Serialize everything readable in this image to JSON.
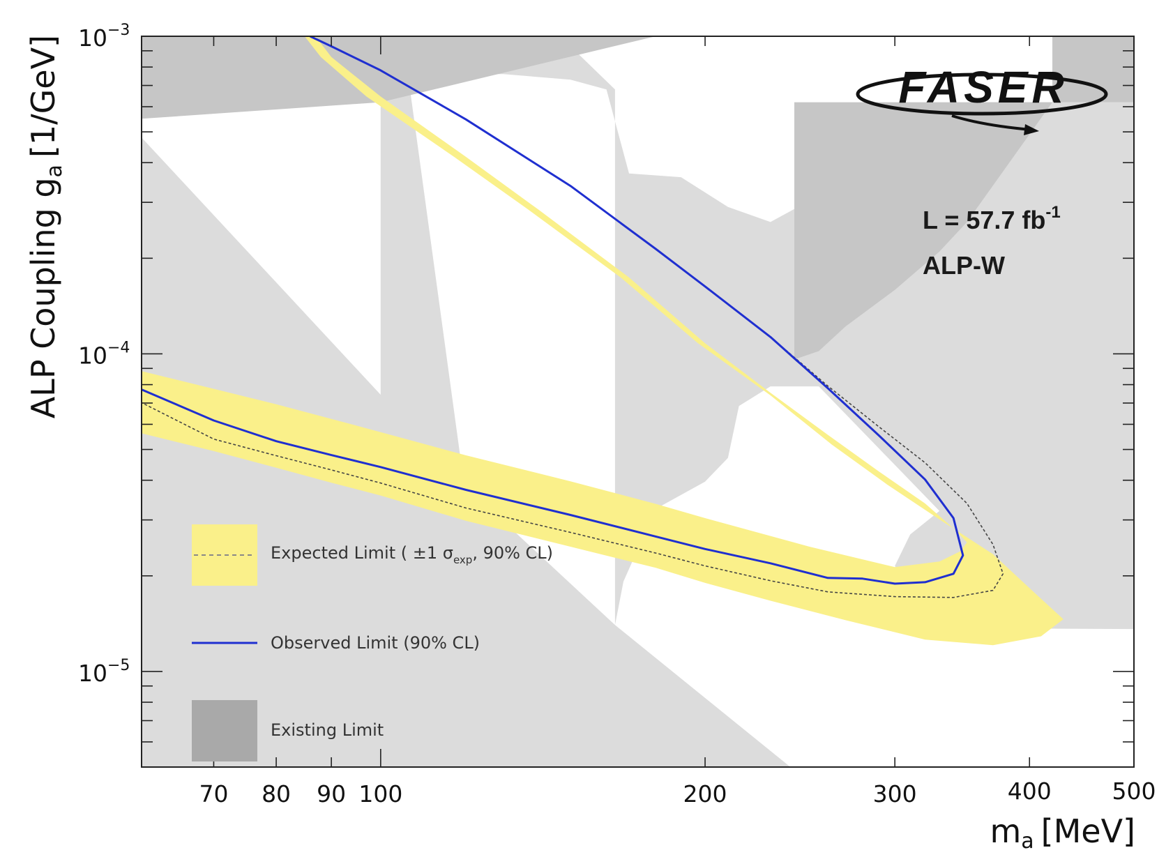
{
  "chart_data": {
    "type": "line",
    "xlabel": "m",
    "xlabel_sub": "a",
    "xlabel_unit": "[MeV]",
    "ylabel": "ALP Coupling g",
    "ylabel_sub": "a",
    "ylabel_unit": "[1/GeV]",
    "x_scale": "log",
    "y_scale": "log",
    "xlim": [
      60,
      500
    ],
    "ylim": [
      5e-06,
      0.001
    ],
    "x_ticks": [
      {
        "value": 70,
        "label": "70"
      },
      {
        "value": 80,
        "label": "80"
      },
      {
        "value": 90,
        "label": "90"
      },
      {
        "value": 100,
        "label": "100"
      },
      {
        "value": 200,
        "label": "200"
      },
      {
        "value": 300,
        "label": "300"
      },
      {
        "value": 400,
        "label": "400"
      },
      {
        "value": 500,
        "label": "500"
      }
    ],
    "y_ticks": [
      {
        "value": 1e-05,
        "base": "10",
        "exp": "−5"
      },
      {
        "value": 0.0001,
        "base": "10",
        "exp": "−4"
      },
      {
        "value": 0.001,
        "base": "10",
        "exp": "−3"
      }
    ],
    "annotations": {
      "luminosity": "L = 57.7 fb",
      "luminosity_exp": "-1",
      "model": "ALP-W",
      "logo": "FASER"
    },
    "legend": {
      "placement": "bottom-left",
      "entries": [
        {
          "prefix": "Expected Limit ( ±1 σ",
          "sub": "exp",
          "suffix": ", 90% CL)",
          "style": "band-dashed"
        },
        {
          "label": "Observed Limit (90% CL)",
          "style": "line"
        },
        {
          "label": "Existing Limit",
          "style": "patch"
        }
      ]
    },
    "colors": {
      "band": "#faf08a",
      "observed": "#1f2fd0",
      "expected": "#444444",
      "existing_light": "#dcdcdc",
      "existing_dark": "#c6c6c6",
      "existing_legend": "#a9a9a9"
    },
    "series": [
      {
        "role": "expected_band",
        "points": [
          [
            60,
            8.82e-05
          ],
          [
            70,
            7.76e-05
          ],
          [
            80,
            6.94e-05
          ],
          [
            90,
            6.24e-05
          ],
          [
            100,
            5.67e-05
          ],
          [
            120,
            4.79e-05
          ],
          [
            150,
            3.97e-05
          ],
          [
            180,
            3.37e-05
          ],
          [
            200,
            3.04e-05
          ],
          [
            250,
            2.47e-05
          ],
          [
            300,
            2.13e-05
          ],
          [
            330,
            2.22e-05
          ],
          [
            345,
            2.39e-05
          ],
          [
            350,
            2.55e-05
          ],
          [
            340,
            2.82e-05
          ],
          [
            320,
            3.38e-05
          ],
          [
            290,
            4.26e-05
          ],
          [
            260,
            5.56e-05
          ],
          [
            230,
            7.54e-05
          ],
          [
            200,
            0.000108
          ],
          [
            170,
            0.000174
          ],
          [
            140,
            0.000285
          ],
          [
            120,
            0.000417
          ],
          [
            100,
            0.000646
          ],
          [
            90,
            0.00086
          ],
          [
            87,
            0.001
          ],
          [
            85,
            0.001
          ],
          [
            88,
            0.00086
          ],
          [
            97,
            0.000646
          ],
          [
            117,
            0.000417
          ],
          [
            137,
            0.000285
          ],
          [
            167,
            0.000174
          ],
          [
            197,
            0.000108
          ],
          [
            230,
            7.4e-05
          ],
          [
            262,
            5.19e-05
          ],
          [
            295,
            3.88e-05
          ],
          [
            330,
            3.01e-05
          ],
          [
            370,
            2.34e-05
          ],
          [
            405,
            1.76e-05
          ],
          [
            430,
            1.46e-05
          ],
          [
            410,
            1.29e-05
          ],
          [
            370,
            1.21e-05
          ],
          [
            320,
            1.26e-05
          ],
          [
            270,
            1.45e-05
          ],
          [
            230,
            1.67e-05
          ],
          [
            200,
            1.9e-05
          ],
          [
            180,
            2.12e-05
          ],
          [
            150,
            2.47e-05
          ],
          [
            120,
            2.98e-05
          ],
          [
            100,
            3.58e-05
          ],
          [
            90,
            3.93e-05
          ],
          [
            80,
            4.38e-05
          ],
          [
            70,
            4.94e-05
          ],
          [
            60,
            5.62e-05
          ]
        ]
      },
      {
        "role": "expected",
        "name": "Expected Limit",
        "points": [
          [
            86,
            0.001
          ],
          [
            90,
            0.00093
          ],
          [
            100,
            0.000781
          ],
          [
            120,
            0.000547
          ],
          [
            150,
            0.000338
          ],
          [
            180,
            0.000214
          ],
          [
            200,
            0.000163
          ],
          [
            230,
            0.000113
          ],
          [
            260,
            7.92e-05
          ],
          [
            290,
            5.89e-05
          ],
          [
            320,
            4.54e-05
          ],
          [
            350,
            3.38e-05
          ],
          [
            370,
            2.51e-05
          ],
          [
            378,
            2.03e-05
          ],
          [
            370,
            1.8e-05
          ],
          [
            340,
            1.71e-05
          ],
          [
            300,
            1.72e-05
          ],
          [
            260,
            1.78e-05
          ],
          [
            230,
            1.93e-05
          ],
          [
            200,
            2.15e-05
          ],
          [
            180,
            2.36e-05
          ],
          [
            150,
            2.74e-05
          ],
          [
            120,
            3.27e-05
          ],
          [
            100,
            3.92e-05
          ],
          [
            90,
            4.31e-05
          ],
          [
            80,
            4.78e-05
          ],
          [
            70,
            5.39e-05
          ],
          [
            60,
            7.02e-05
          ]
        ]
      },
      {
        "role": "observed",
        "name": "Observed Limit",
        "points": [
          [
            86,
            0.001
          ],
          [
            90,
            0.00093
          ],
          [
            100,
            0.000781
          ],
          [
            120,
            0.000547
          ],
          [
            150,
            0.000338
          ],
          [
            180,
            0.000214
          ],
          [
            200,
            0.000163
          ],
          [
            230,
            0.000113
          ],
          [
            260,
            7.79e-05
          ],
          [
            290,
            5.53e-05
          ],
          [
            320,
            4.02e-05
          ],
          [
            340,
            3.04e-05
          ],
          [
            347,
            2.32e-05
          ],
          [
            340,
            2.03e-05
          ],
          [
            320,
            1.91e-05
          ],
          [
            300,
            1.89e-05
          ],
          [
            280,
            1.96e-05
          ],
          [
            260,
            1.97e-05
          ],
          [
            230,
            2.19e-05
          ],
          [
            200,
            2.43e-05
          ],
          [
            180,
            2.66e-05
          ],
          [
            150,
            3.11e-05
          ],
          [
            120,
            3.73e-05
          ],
          [
            100,
            4.4e-05
          ],
          [
            90,
            4.8e-05
          ],
          [
            80,
            5.31e-05
          ],
          [
            70,
            6.17e-05
          ],
          [
            60,
            7.72e-05
          ]
        ]
      }
    ],
    "existing_regions": [
      {
        "shade": "light",
        "points": [
          [
            60,
            5e-06
          ],
          [
            60,
            0.00048
          ],
          [
            120,
            3.82e-05
          ],
          [
            165,
            1.4e-05
          ],
          [
            240,
            5e-06
          ]
        ]
      },
      {
        "shade": "light",
        "points": [
          [
            60,
            2.8e-05
          ],
          [
            66,
            8e-05
          ],
          [
            75,
            6.25e-05
          ],
          [
            80,
            5.3e-05
          ],
          [
            82,
            2.48e-05
          ],
          [
            83,
            5e-06
          ],
          [
            60,
            5e-06
          ]
        ]
      },
      {
        "shade": "light",
        "points": [
          [
            60,
            1.1e-05
          ],
          [
            60,
            8.6e-06
          ],
          [
            100,
            8.6e-06
          ],
          [
            100,
            1.1e-05
          ]
        ]
      },
      {
        "shade": "light",
        "points": [
          [
            82,
            5e-06
          ],
          [
            83,
            2.48e-05
          ],
          [
            88,
            1.7e-05
          ],
          [
            105,
            5e-06
          ]
        ]
      },
      {
        "shade": "light",
        "points": [
          [
            100,
            5e-06
          ],
          [
            100,
            1.83e-05
          ],
          [
            102,
            8.7e-06
          ],
          [
            105,
            5e-06
          ]
        ]
      },
      {
        "shade": "light",
        "points": [
          [
            100,
            0.00076
          ],
          [
            100,
            2.1e-05
          ],
          [
            121,
            1.82e-05
          ],
          [
            115,
            5e-06
          ],
          [
            118,
            5e-06
          ],
          [
            123,
            1.9e-05
          ],
          [
            106,
            0.00076
          ],
          [
            108,
            0.00093
          ],
          [
            60,
            0.00093
          ],
          [
            60,
            0.001
          ],
          [
            120,
            0.001
          ],
          [
            120,
            0.00076
          ]
        ]
      },
      {
        "shade": "light",
        "points": [
          [
            112,
            0.00076
          ],
          [
            108,
            0.00093
          ],
          [
            150,
            0.00093
          ],
          [
            165,
            0.00068
          ],
          [
            165,
            1.4e-05
          ],
          [
            168,
            1.92e-05
          ],
          [
            180,
            3.25e-05
          ],
          [
            200,
            3.96e-05
          ],
          [
            210,
            4.7e-05
          ],
          [
            215,
            6.85e-05
          ],
          [
            230,
            7.9e-05
          ],
          [
            255,
            7.9e-05
          ],
          [
            330,
            3.2e-05
          ],
          [
            310,
            2.7e-05
          ],
          [
            300,
            2.15e-05
          ],
          [
            320,
            1.37e-05
          ],
          [
            500,
            1.36e-05
          ],
          [
            500,
            0.00062
          ],
          [
            400,
            0.00062
          ],
          [
            350,
            0.00062
          ],
          [
            320,
            0.00046
          ],
          [
            270,
            0.00035
          ],
          [
            230,
            0.00026
          ],
          [
            210,
            0.00029
          ],
          [
            190,
            0.00036
          ],
          [
            170,
            0.00037
          ],
          [
            162,
            0.00068
          ],
          [
            150,
            0.00073
          ],
          [
            130,
            0.00076
          ]
        ]
      },
      {
        "shade": "dark",
        "points": [
          [
            60,
            0.00055
          ],
          [
            100,
            0.00062
          ],
          [
            180,
            0.001
          ],
          [
            500,
            0.001
          ],
          [
            500,
            0.00062
          ],
          [
            420,
            0.00062
          ],
          [
            420,
            0.001
          ],
          [
            165,
            0.001
          ],
          [
            120,
            0.001
          ],
          [
            60,
            0.001
          ]
        ]
      },
      {
        "shade": "dark",
        "points": [
          [
            242,
            0.00062
          ],
          [
            242,
            9.6e-05
          ],
          [
            255,
            0.000102
          ],
          [
            270,
            0.000122
          ],
          [
            300,
            0.000159
          ],
          [
            330,
            0.00021
          ],
          [
            350,
            0.00026
          ],
          [
            420,
            0.00062
          ]
        ]
      },
      {
        "shade": "dark",
        "points": [
          [
            60,
            1.65e-05
          ],
          [
            60,
            5e-06
          ],
          [
            60,
            5e-06
          ]
        ]
      }
    ]
  }
}
